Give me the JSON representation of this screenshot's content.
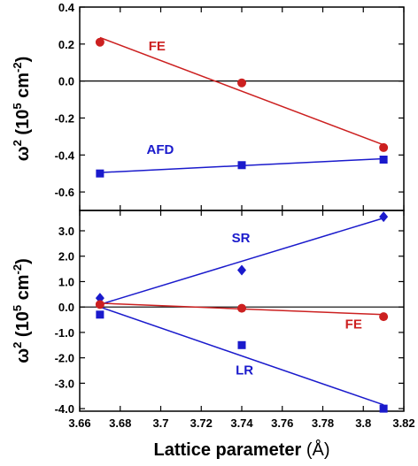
{
  "chart_data": [
    {
      "type": "scatter",
      "panel": "top",
      "xlim": [
        3.66,
        3.82
      ],
      "ylim": [
        -0.7,
        0.4
      ],
      "yticks": [
        "0.4",
        "0.2",
        "0.0",
        "-0.2",
        "-0.4",
        "-0.6"
      ],
      "ytick_values": [
        0.4,
        0.2,
        0.0,
        -0.2,
        -0.4,
        -0.6
      ],
      "ylabel_prefix": "ω",
      "ylabel_units": "(10",
      "ylabel_units2": "cm",
      "ylabel_exp1": "2",
      "ylabel_exp2": "5",
      "ylabel_exp3": "-2",
      "ylabel_close": ")",
      "zero_line": true,
      "series": [
        {
          "name": "FE",
          "color": "#cc2020",
          "marker": "circle",
          "x": [
            3.67,
            3.74,
            3.81
          ],
          "y": [
            0.21,
            -0.01,
            -0.36
          ],
          "fit": [
            [
              3.67,
              0.235
            ],
            [
              3.81,
              -0.345
            ]
          ]
        },
        {
          "name": "AFD",
          "color": "#1a1acc",
          "marker": "square",
          "x": [
            3.67,
            3.74,
            3.81
          ],
          "y": [
            -0.5,
            -0.455,
            -0.425
          ],
          "fit": [
            [
              3.67,
              -0.495
            ],
            [
              3.81,
              -0.42
            ]
          ]
        }
      ],
      "annotations": [
        {
          "text": "FE",
          "color": "#cc2020",
          "x": 3.694,
          "y": 0.165
        },
        {
          "text": "AFD",
          "color": "#1a1acc",
          "x": 3.693,
          "y": -0.395
        }
      ]
    },
    {
      "type": "scatter",
      "panel": "bottom",
      "xlim": [
        3.66,
        3.82
      ],
      "ylim": [
        -4.1,
        3.8
      ],
      "yticks": [
        "3.0",
        "2.0",
        "1.0",
        "0.0",
        "-1.0",
        "-2.0",
        "-3.0",
        "-4.0"
      ],
      "ytick_values": [
        3.0,
        2.0,
        1.0,
        0.0,
        -1.0,
        -2.0,
        -3.0,
        -4.0
      ],
      "xticks": [
        "3.66",
        "3.68",
        "3.7",
        "3.72",
        "3.74",
        "3.76",
        "3.78",
        "3.8",
        "3.82"
      ],
      "xtick_values": [
        3.66,
        3.68,
        3.7,
        3.72,
        3.74,
        3.76,
        3.78,
        3.8,
        3.82
      ],
      "xlabel": "Lattice parameter",
      "xlabel_unit": "(Å)",
      "ylabel_prefix": "ω",
      "ylabel_units": "(10",
      "ylabel_units2": "cm",
      "ylabel_exp1": "2",
      "ylabel_exp2": "5",
      "ylabel_exp3": "-2",
      "ylabel_close": ")",
      "zero_line": true,
      "series": [
        {
          "name": "SR",
          "color": "#1a1acc",
          "marker": "diamond",
          "x": [
            3.67,
            3.74,
            3.81
          ],
          "y": [
            0.35,
            1.45,
            3.55
          ],
          "fit": [
            [
              3.67,
              0.1
            ],
            [
              3.81,
              3.5
            ]
          ]
        },
        {
          "name": "FE",
          "color": "#cc2020",
          "marker": "circle",
          "x": [
            3.67,
            3.74,
            3.81
          ],
          "y": [
            0.1,
            -0.05,
            -0.38
          ],
          "fit": [
            [
              3.67,
              0.15
            ],
            [
              3.81,
              -0.3
            ]
          ]
        },
        {
          "name": "LR",
          "color": "#1a1acc",
          "marker": "square",
          "x": [
            3.67,
            3.74,
            3.81
          ],
          "y": [
            -0.3,
            -1.5,
            -4.0
          ],
          "fit": [
            [
              3.67,
              0.0
            ],
            [
              3.81,
              -3.85
            ]
          ]
        }
      ],
      "annotations": [
        {
          "text": "SR",
          "color": "#1a1acc",
          "x": 3.735,
          "y": 2.55
        },
        {
          "text": "FE",
          "color": "#cc2020",
          "x": 3.791,
          "y": -0.85
        },
        {
          "text": "LR",
          "color": "#1a1acc",
          "x": 3.737,
          "y": -2.65
        }
      ]
    }
  ]
}
